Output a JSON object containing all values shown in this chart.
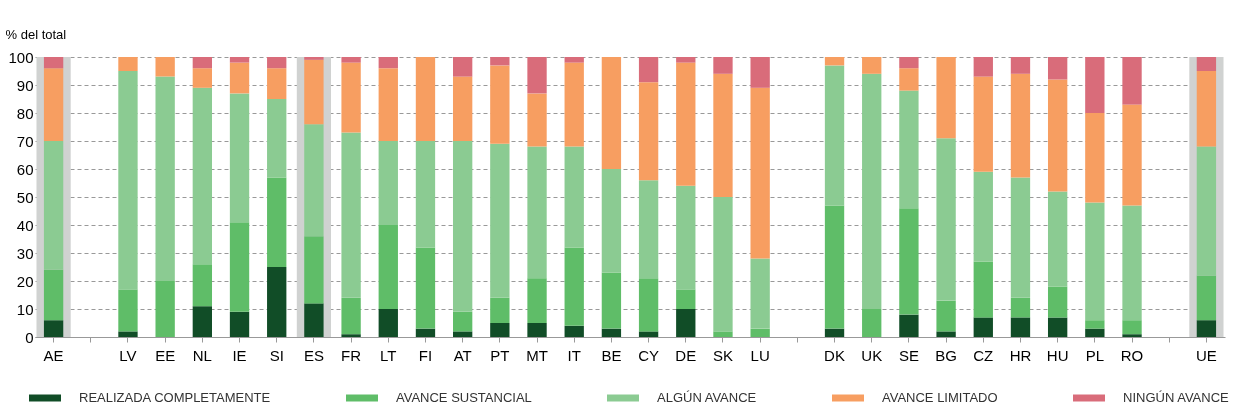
{
  "chart_data": {
    "type": "bar",
    "stacked": true,
    "ylabel": "% del total",
    "categories": [
      "AE",
      null,
      "LV",
      "EE",
      "NL",
      "IE",
      "SI",
      "ES",
      "FR",
      "LT",
      "FI",
      "AT",
      "PT",
      "MT",
      "IT",
      "BE",
      "CY",
      "DE",
      "SK",
      "LU",
      null,
      "DK",
      "UK",
      "SE",
      "BG",
      "CZ",
      "HR",
      "HU",
      "PL",
      "RO",
      null,
      "UE"
    ],
    "series": [
      {
        "name": "REALIZADA COMPLETAMENTE",
        "color": "#114d27",
        "values": [
          6,
          null,
          2,
          0,
          11,
          9,
          25,
          12,
          1,
          10,
          3,
          2,
          5,
          5,
          4,
          3,
          2,
          10,
          0,
          0,
          null,
          3,
          0,
          8,
          2,
          7,
          7,
          7,
          3,
          1,
          null,
          6
        ]
      },
      {
        "name": "AVANCE SUSTANCIAL",
        "color": "#5fbd68",
        "values": [
          18,
          null,
          15,
          20,
          15,
          32,
          32,
          24,
          13,
          30,
          29,
          7,
          9,
          16,
          28,
          20,
          19,
          7,
          2,
          3,
          null,
          44,
          10,
          38,
          11,
          20,
          7,
          11,
          3,
          5,
          null,
          16
        ]
      },
      {
        "name": "ALGÚN AVANCE",
        "color": "#8bcb92",
        "values": [
          46,
          null,
          78,
          73,
          63,
          46,
          28,
          40,
          59,
          30,
          38,
          61,
          55,
          47,
          36,
          37,
          35,
          37,
          48,
          25,
          null,
          50,
          84,
          42,
          58,
          32,
          43,
          34,
          42,
          41,
          null,
          46
        ]
      },
      {
        "name": "AVANCE LIMITADO",
        "color": "#f79e61",
        "values": [
          26,
          null,
          5,
          7,
          7,
          11,
          11,
          23,
          25,
          26,
          30,
          23,
          28,
          19,
          30,
          40,
          35,
          44,
          44,
          61,
          null,
          3,
          6,
          8,
          29,
          34,
          37,
          40,
          32,
          36,
          null,
          27
        ]
      },
      {
        "name": "NINGÚN AVANCE",
        "color": "#d96c7a",
        "values": [
          4,
          null,
          0,
          0,
          4,
          2,
          4,
          1,
          2,
          4,
          0,
          7,
          3,
          13,
          2,
          0,
          9,
          2,
          6,
          11,
          null,
          0,
          0,
          4,
          0,
          7,
          6,
          8,
          20,
          17,
          null,
          5
        ]
      }
    ],
    "ylim": [
      0,
      100
    ],
    "yticks": [
      0,
      10,
      20,
      30,
      40,
      50,
      60,
      70,
      80,
      90,
      100
    ],
    "grid": "y",
    "legend": "bottom",
    "bands": [
      {
        "axis": "x",
        "from": "AE",
        "to": "AE",
        "color": "#d0d2d1"
      },
      {
        "axis": "x",
        "from": "ES",
        "to": "ES",
        "color": "#d0d2d1"
      },
      {
        "axis": "x",
        "from": "UE",
        "to": "UE",
        "color": "#d0d2d1"
      }
    ]
  }
}
